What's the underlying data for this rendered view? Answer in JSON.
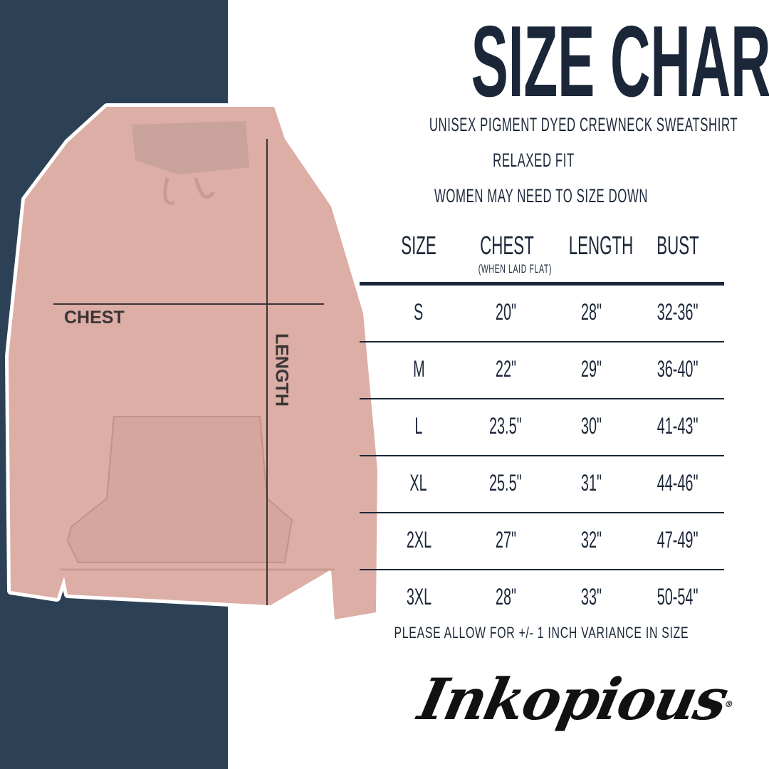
{
  "title": "SIZE CHART",
  "subtitle_lines": [
    "UNISEX PIGMENT DYED CREWNECK SWEATSHIRT",
    "RELAXED FIT",
    "WOMEN MAY NEED TO SIZE DOWN"
  ],
  "table": {
    "headers": [
      "SIZE",
      "CHEST",
      "LENGTH",
      "BUST"
    ],
    "chest_note": "(WHEN LAID FLAT)",
    "rows": [
      [
        "S",
        "20\"",
        "28\"",
        "32-36\""
      ],
      [
        "M",
        "22\"",
        "29\"",
        "36-40\""
      ],
      [
        "L",
        "23.5\"",
        "30\"",
        "41-43\""
      ],
      [
        "XL",
        "25.5\"",
        "31\"",
        "44-46\""
      ],
      [
        "2XL",
        "27\"",
        "32\"",
        "47-49\""
      ],
      [
        "3XL",
        "28\"",
        "33\"",
        "50-54\""
      ]
    ]
  },
  "footnote": "PLEASE ALLOW FOR +/- 1 INCH VARIANCE IN SIZE",
  "image_labels": {
    "chest": "CHEST",
    "length": "LENGTH"
  },
  "logo": {
    "text": "Inkopious",
    "mark": "®"
  },
  "colors": {
    "panel": "#2c4155",
    "text": "#1b2638",
    "garment": "#dcaea6"
  }
}
